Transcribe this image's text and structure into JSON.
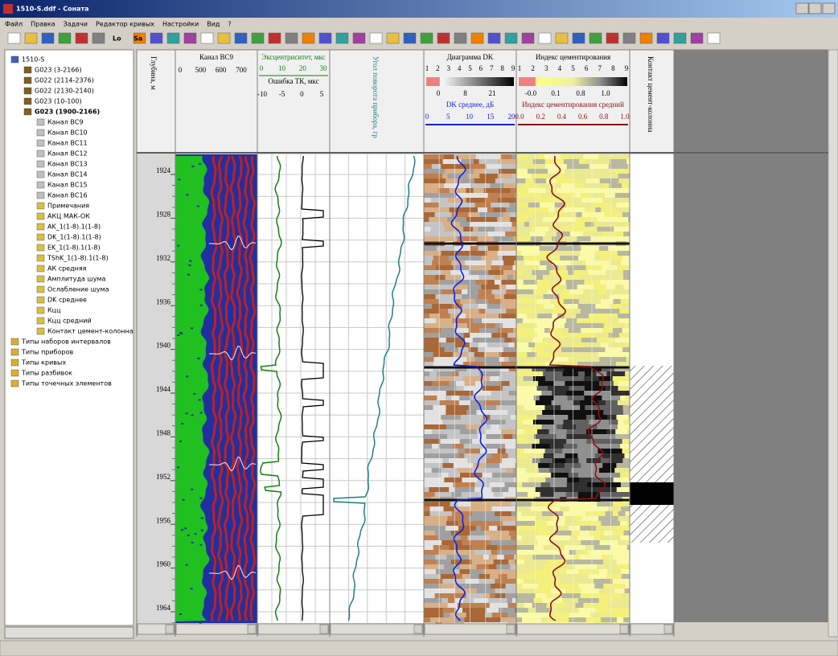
{
  "window": {
    "title": "1510-S.ddf - Соната"
  },
  "menu": [
    "Файл",
    "Правка",
    "Задачи",
    "Редактор кривых",
    "Настройки",
    "Вид",
    "?"
  ],
  "toolbar": [
    "Lo",
    "Sa"
  ],
  "tree": {
    "root": "1510-S",
    "datasets": [
      "G023 (3-2166)",
      "G022 (2114-2376)",
      "G022 (2130-2140)",
      "G023 (10-100)"
    ],
    "active": {
      "label": "G023 (1900-2166)",
      "children": [
        "Канал ВС9",
        "Канал ВС10",
        "Канал ВС11",
        "Канал ВС12",
        "Канал ВС13",
        "Канал ВС14",
        "Канал ВС15",
        "Канал ВС16",
        "Примечания",
        "АКЦ МАК-ОК",
        "AK_1(1-8).1(1-8)",
        "DK_1(1-8).1(1-8)",
        "EK_1(1-8).1(1-8)",
        "TShK_1(1-8).1(1-8)",
        "АК средняя",
        "Амплитуда шума",
        "Ослабление шума",
        "DK среднее",
        "Кцц",
        "Кцц средний",
        "Контакт цемент-колонна"
      ]
    },
    "types": [
      "Типы наборов интервалов",
      "Типы приборов",
      "Типы кривых",
      "Типы разбивок",
      "Типы точечных элементов"
    ]
  },
  "tracks": {
    "depth": {
      "title": "Глубина, м",
      "ticks": [
        1924,
        1928,
        1932,
        1936,
        1940,
        1944,
        1948,
        1952,
        1956,
        1960,
        1964
      ]
    },
    "channel": {
      "title": "Канал ВС9",
      "scale": [
        0,
        500,
        600,
        700
      ]
    },
    "ecc": {
      "title": "Эксцентриситет, мкс",
      "scale": [
        0,
        10,
        20,
        30
      ],
      "error_title": "Ошибка ТК, мкс",
      "error_scale": [
        -10,
        -5,
        0,
        5
      ]
    },
    "angle": {
      "title": "Угол поворота прибора, гр"
    },
    "dk": {
      "title": "Диаграмма DK",
      "palette": [
        1,
        2,
        3,
        4,
        5,
        6,
        7,
        8,
        9
      ],
      "color_scale": [
        0,
        8,
        21
      ],
      "mean_title": "DK среднее, дБ",
      "mean_scale": [
        0,
        5,
        10,
        15,
        20
      ]
    },
    "ci": {
      "title": "Индекс цементирования",
      "palette": [
        1,
        2,
        3,
        4,
        5,
        6,
        7,
        8,
        9
      ],
      "color_scale": [
        {
          "value": 0,
          "label": "-0.0"
        },
        0.1,
        0.8,
        {
          "value": 1,
          "label": "1.0"
        }
      ],
      "mean_title": "Индекс цементирования средний",
      "mean_scale": [
        {
          "value": 0,
          "label": "0.0"
        },
        0.2,
        0.4,
        0.6,
        0.8,
        {
          "value": 1,
          "label": "1.0"
        }
      ]
    },
    "contact": {
      "title": "Контакт цемент-колонна"
    }
  }
}
